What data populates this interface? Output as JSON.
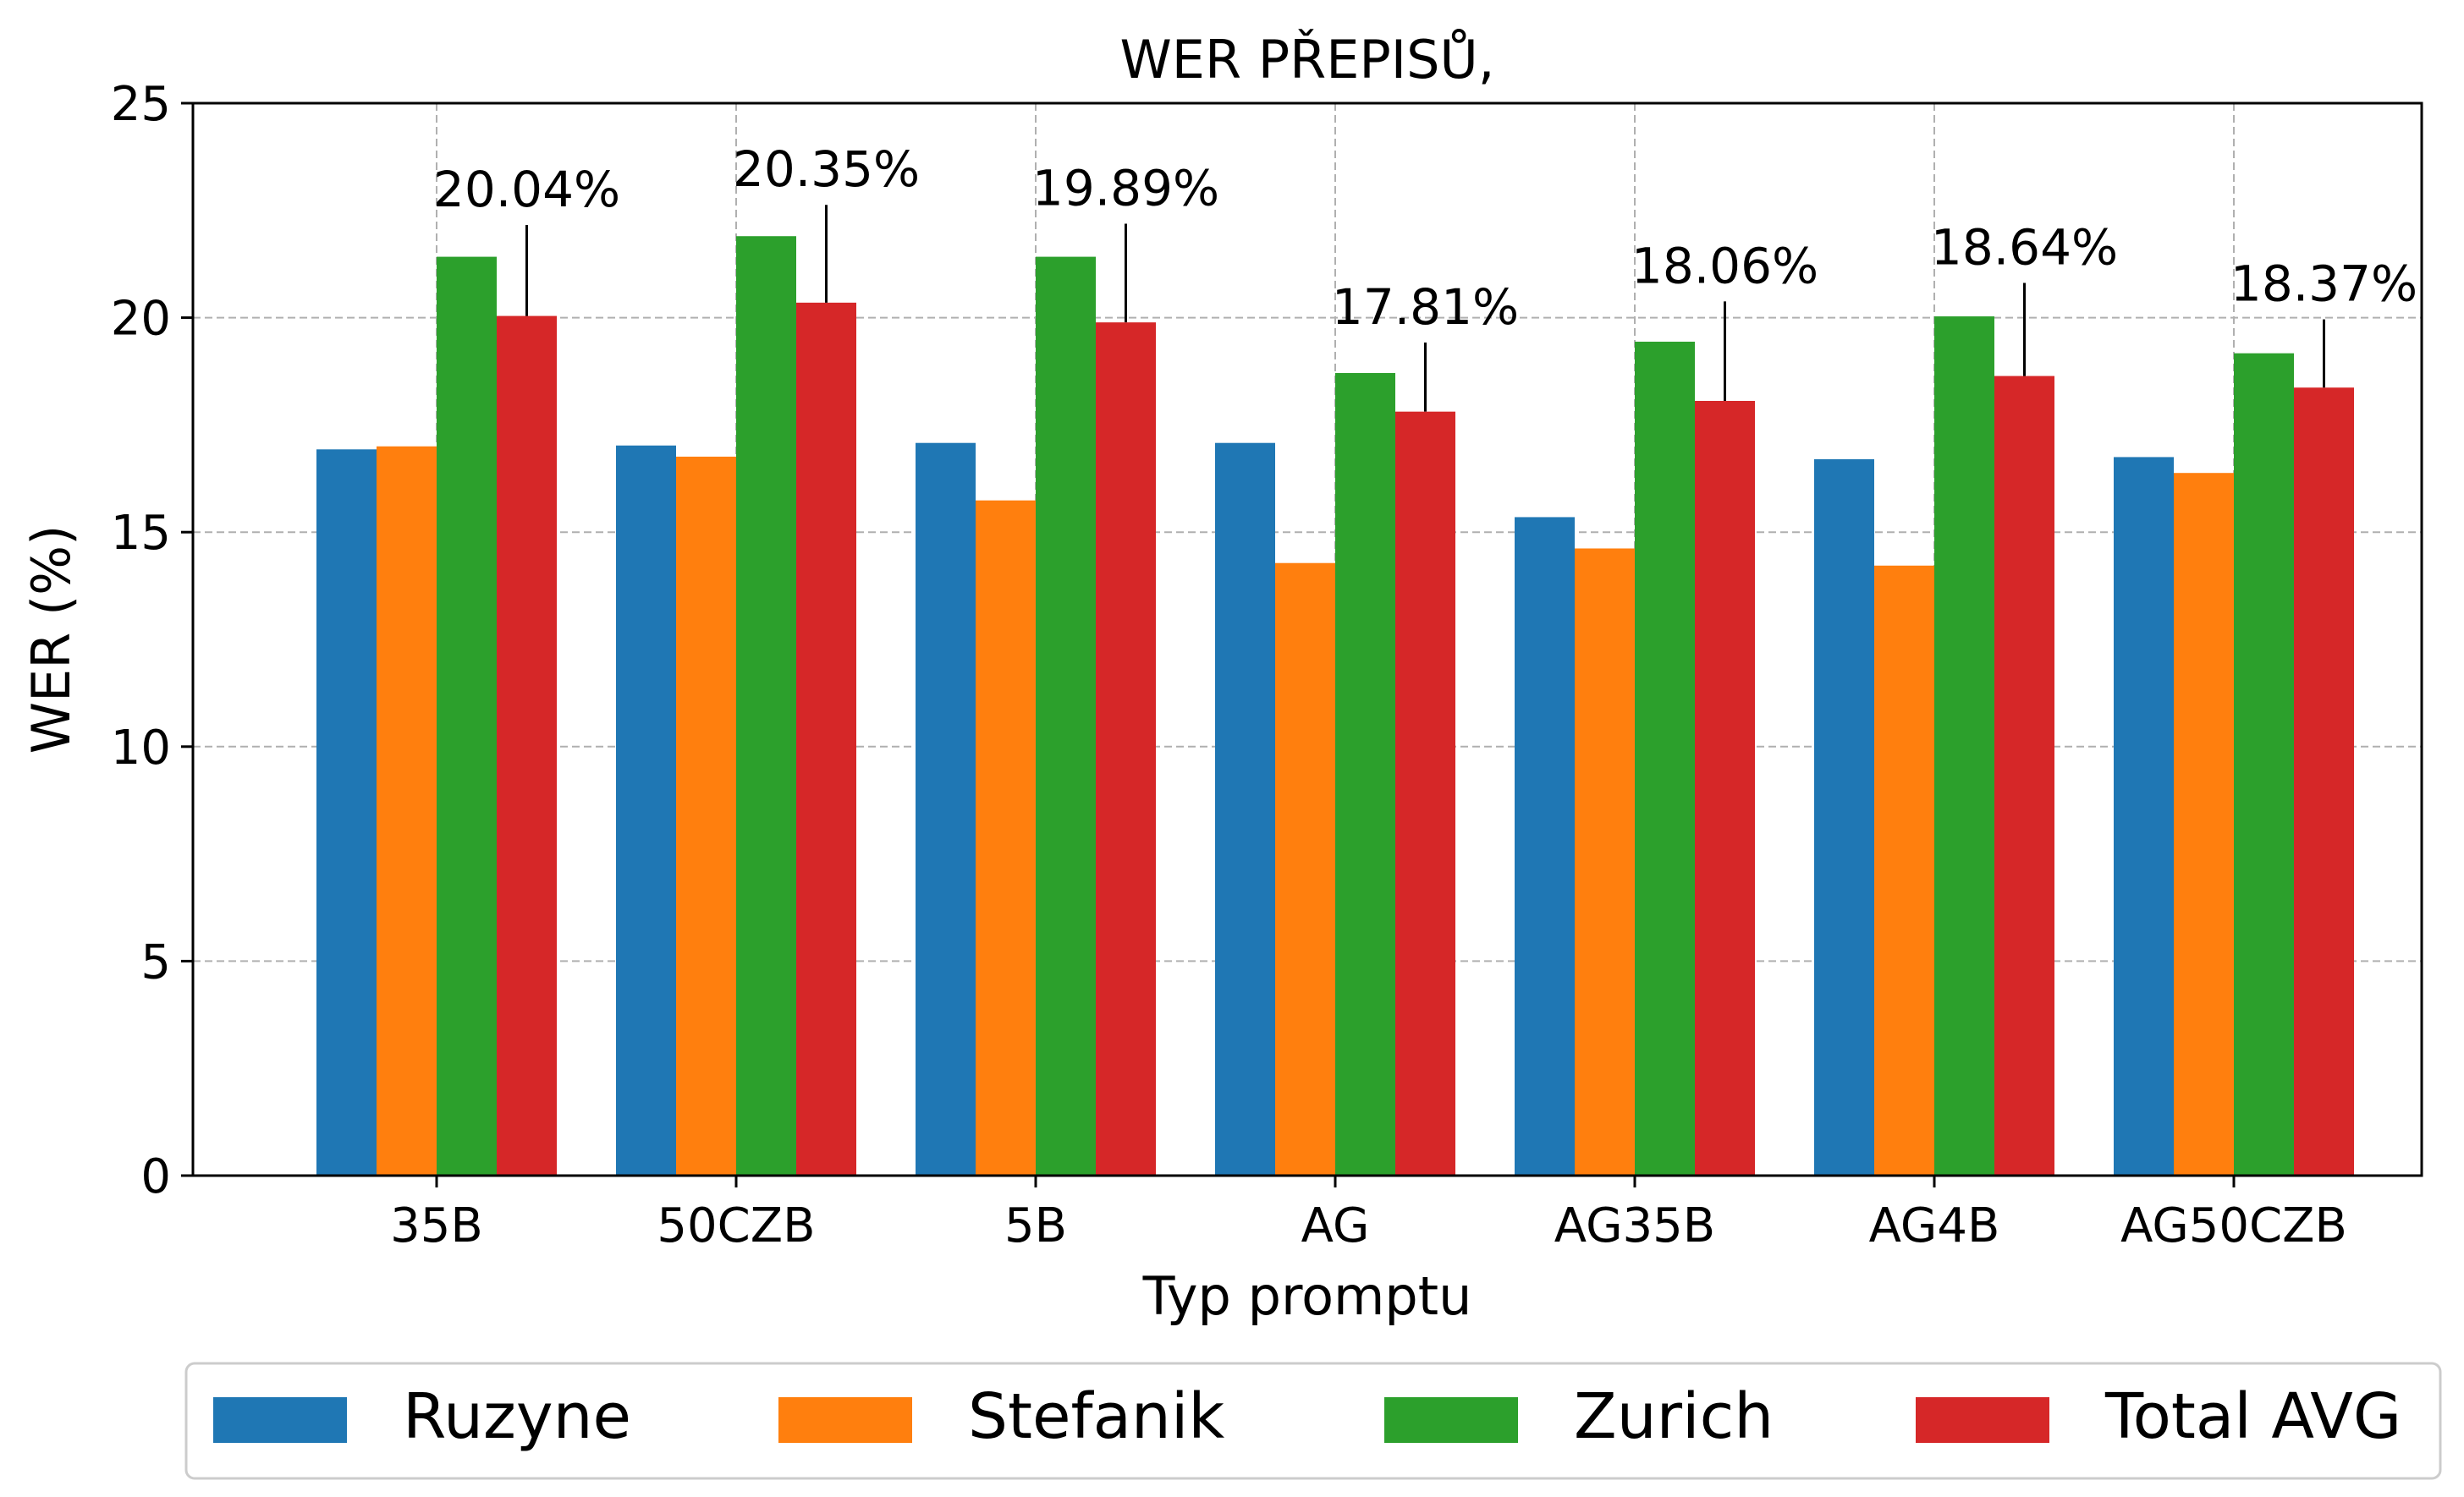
{
  "chart_data": {
    "type": "bar",
    "title": "WER PŘEPISŮ,",
    "xlabel": "Typ promptu",
    "ylabel": "WER (%)",
    "ylim": [
      0,
      25
    ],
    "yticks": [
      0,
      5,
      10,
      15,
      20,
      25
    ],
    "grid": true,
    "legend_position": "bottom",
    "categories": [
      "35B",
      "50CZB",
      "5B",
      "AG",
      "AG35B",
      "AG4B",
      "AG50CZB"
    ],
    "series": [
      {
        "name": "Ruzyne",
        "color": "#1f77b4",
        "values": [
          16.93,
          17.02,
          17.08,
          17.08,
          15.35,
          16.7,
          16.75
        ]
      },
      {
        "name": "Stefanik",
        "color": "#ff7f0e",
        "values": [
          17.0,
          16.76,
          15.74,
          14.28,
          14.62,
          14.22,
          16.38
        ]
      },
      {
        "name": "Zurich",
        "color": "#2ca02c",
        "values": [
          21.42,
          21.9,
          21.42,
          18.71,
          19.44,
          20.03,
          19.17
        ]
      },
      {
        "name": "Total AVG",
        "color": "#d62728",
        "values": [
          20.04,
          20.35,
          19.89,
          17.81,
          18.06,
          18.64,
          18.37
        ]
      }
    ],
    "error_bars": {
      "series": "Total AVG",
      "upper": [
        22.16,
        22.63,
        22.19,
        19.42,
        20.38,
        20.81,
        19.96
      ]
    },
    "data_labels": [
      "20.04%",
      "20.35%",
      "19.89%",
      "17.81%",
      "18.06%",
      "18.64%",
      "18.37%"
    ]
  }
}
